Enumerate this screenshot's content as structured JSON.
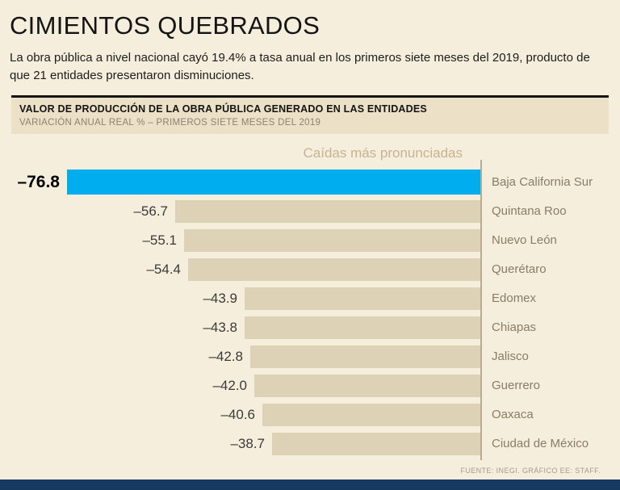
{
  "page": {
    "title": "CIMIENTOS QUEBRADOS",
    "subtitle": "La obra pública a nivel nacional cayó 19.4% a tasa anual en los primeros siete meses del 2019, producto de que 21 entidades presentaron disminuciones.",
    "source": "FUENTE: INEGI. GRÁFICO EE: STAFF."
  },
  "header_band": {
    "title": "VALOR DE PRODUCCIÓN DE LA OBRA PÚBLICA GENERADO EN LAS ENTIDADES",
    "subtitle": "VARIACIÓN ANUAL REAL % – PRIMEROS SIETE MESES DEL 2019"
  },
  "chart_data": {
    "type": "bar",
    "orientation": "horizontal",
    "group_label": "Caídas más pronunciadas",
    "categories": [
      "Baja California Sur",
      "Quintana Roo",
      "Nuevo León",
      "Querétaro",
      "Edomex",
      "Chiapas",
      "Jalisco",
      "Guerrero",
      "Oaxaca",
      "Ciudad de México"
    ],
    "values": [
      -76.8,
      -56.7,
      -55.1,
      -54.4,
      -43.9,
      -43.8,
      -42.8,
      -42.0,
      -40.6,
      -38.7
    ],
    "value_labels": [
      "–76.8",
      "–56.7",
      "–55.1",
      "–54.4",
      "–43.9",
      "–43.8",
      "–42.8",
      "–42.0",
      "–40.6",
      "–38.7"
    ],
    "xlim": [
      -80,
      0
    ],
    "highlight_index": 0,
    "legend": "none",
    "colors": {
      "highlight_bar": "#00aeef",
      "bar": "#ded2b6",
      "axis_line": "#b8ab90",
      "category_label": "#8a7c66",
      "footer_strip": "#15395f"
    }
  }
}
